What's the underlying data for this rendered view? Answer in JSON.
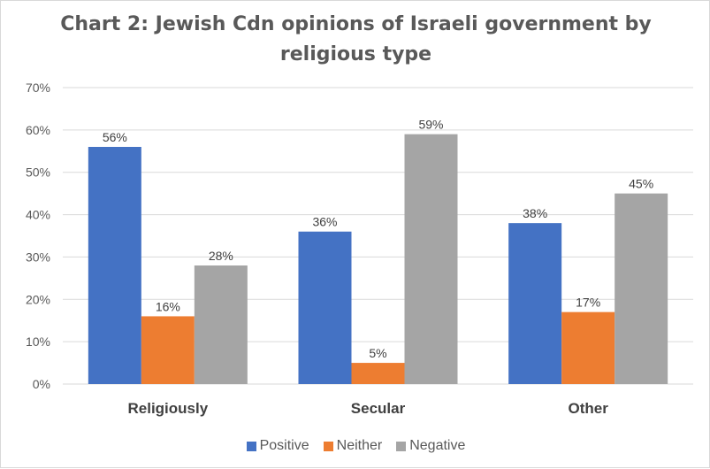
{
  "chart_data": {
    "type": "bar",
    "title": "Chart 2: Jewish Cdn opinions of Israeli government by religious type",
    "categories": [
      "Religiously",
      "Secular",
      "Other"
    ],
    "series": [
      {
        "name": "Positive",
        "values": [
          56,
          36,
          38
        ],
        "color": "#4472c4"
      },
      {
        "name": "Neither",
        "values": [
          16,
          5,
          17
        ],
        "color": "#ed7d31"
      },
      {
        "name": "Negative",
        "values": [
          28,
          59,
          45
        ],
        "color": "#a5a5a5"
      }
    ],
    "ylim": [
      0,
      70
    ],
    "yticks": [
      "0%",
      "10%",
      "20%",
      "30%",
      "40%",
      "50%",
      "60%",
      "70%"
    ],
    "value_suffix": "%",
    "grid": true,
    "legend_position": "bottom"
  }
}
